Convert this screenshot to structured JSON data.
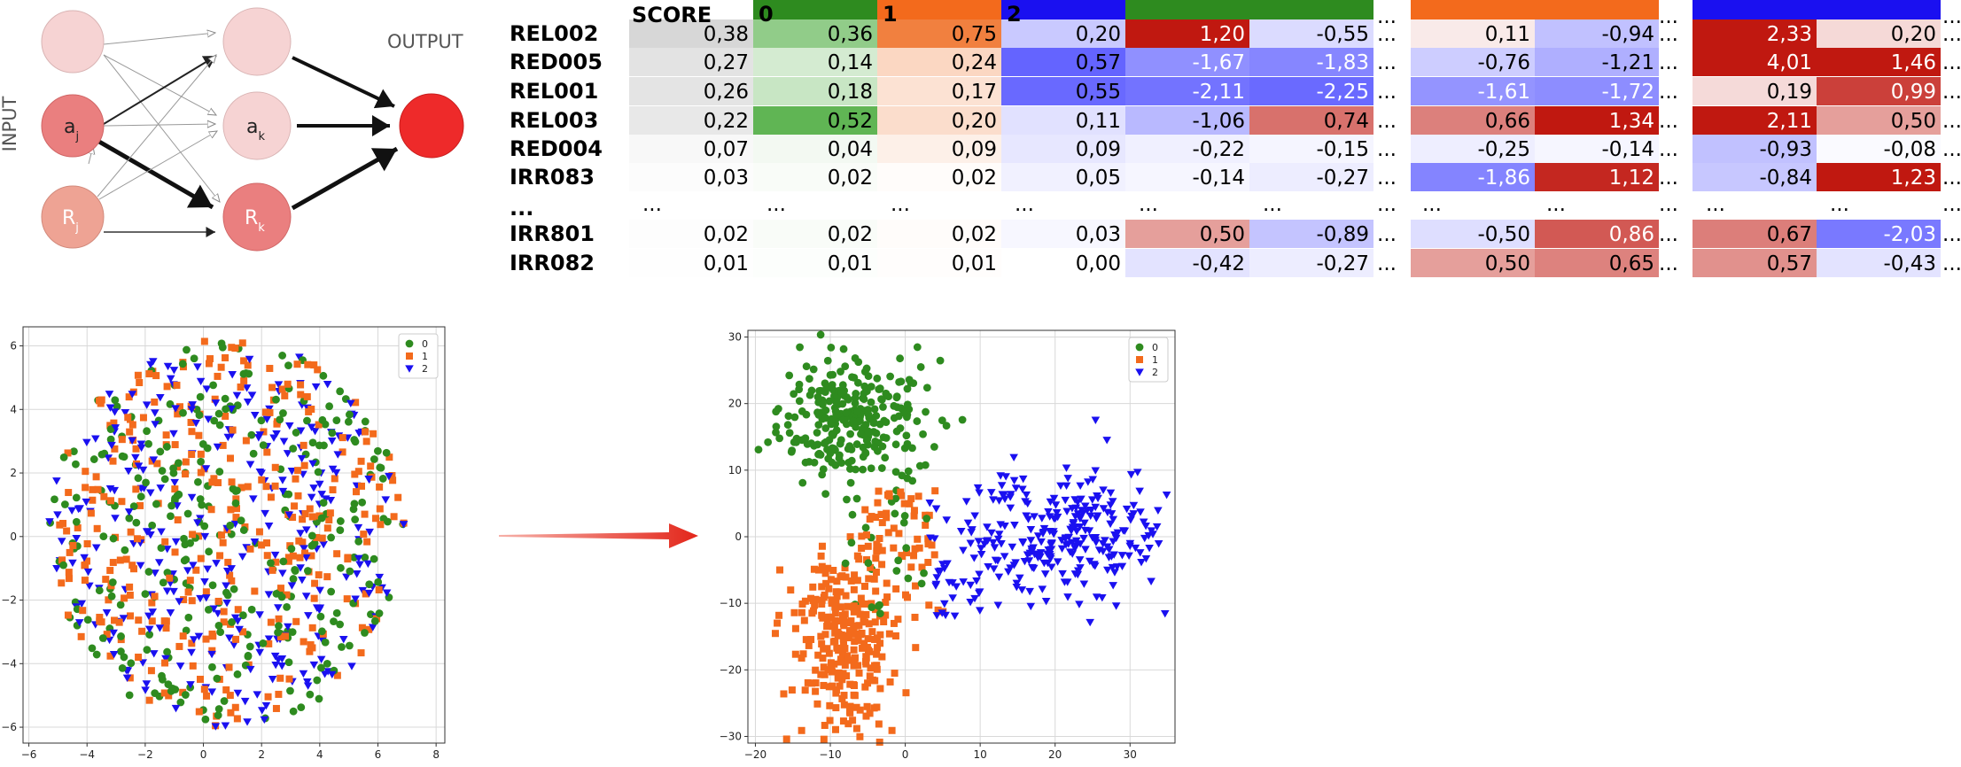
{
  "network": {
    "input_label": "INPUT",
    "output_label": "OUTPUT",
    "nodes": {
      "a_j": "a",
      "a_j_sub": "j",
      "a_k": "a",
      "a_k_sub": "k",
      "r_j": "R",
      "r_j_sub": "j",
      "r_k": "R",
      "r_k_sub": "k"
    },
    "colors": {
      "light": "#f6d3d3",
      "mid": "#ea7f7f",
      "salmon": "#eea394",
      "output": "#ee2a2a"
    }
  },
  "table": {
    "score_label": "SCORE",
    "group_headers": [
      "0",
      "1",
      "2"
    ],
    "header_colors": [
      "#2e8b1f",
      "#f36a1c",
      "#1a10f0"
    ],
    "ellipsis": "...",
    "rows": [
      {
        "label": "REL002",
        "score": "0,38",
        "p": [
          "0,36",
          "0,75",
          "0,20"
        ],
        "g1": [
          "1,20",
          "-0,55"
        ],
        "g2": [
          "0,11",
          "-0,94"
        ],
        "g3": [
          "2,33",
          "0,20"
        ]
      },
      {
        "label": "RED005",
        "score": "0,27",
        "p": [
          "0,14",
          "0,24",
          "0,57"
        ],
        "g1": [
          "-1,67",
          "-1,83"
        ],
        "g2": [
          "-0,76",
          "-1,21"
        ],
        "g3": [
          "4,01",
          "1,46"
        ]
      },
      {
        "label": "REL001",
        "score": "0,26",
        "p": [
          "0,18",
          "0,17",
          "0,55"
        ],
        "g1": [
          "-2,11",
          "-2,25"
        ],
        "g2": [
          "-1,61",
          "-1,72"
        ],
        "g3": [
          "0,19",
          "0,99"
        ]
      },
      {
        "label": "REL003",
        "score": "0,22",
        "p": [
          "0,52",
          "0,20",
          "0,11"
        ],
        "g1": [
          "-1,06",
          "0,74"
        ],
        "g2": [
          "0,66",
          "1,34"
        ],
        "g3": [
          "2,11",
          "0,50"
        ]
      },
      {
        "label": "RED004",
        "score": "0,07",
        "p": [
          "0,04",
          "0,09",
          "0,09"
        ],
        "g1": [
          "-0,22",
          "-0,15"
        ],
        "g2": [
          "-0,25",
          "-0,14"
        ],
        "g3": [
          "-0,93",
          "-0,08"
        ]
      },
      {
        "label": "IRR083",
        "score": "0,03",
        "p": [
          "0,02",
          "0,02",
          "0,05"
        ],
        "g1": [
          "-0,14",
          "-0,27"
        ],
        "g2": [
          "-1,86",
          "1,12"
        ],
        "g3": [
          "-0,84",
          "1,23"
        ]
      },
      {
        "label": "...",
        "ellipsis_row": true
      },
      {
        "label": "IRR801",
        "score": "0,02",
        "p": [
          "0,02",
          "0,02",
          "0,03"
        ],
        "g1": [
          "0,50",
          "-0,89"
        ],
        "g2": [
          "-0,50",
          "0,86"
        ],
        "g3": [
          "0,67",
          "-2,03"
        ]
      },
      {
        "label": "IRR082",
        "score": "0,01",
        "p": [
          "0,01",
          "0,01",
          "0,00"
        ],
        "g1": [
          "-0,42",
          "-0,27"
        ],
        "g2": [
          "0,50",
          "0,65"
        ],
        "g3": [
          "0,57",
          "-0,43"
        ]
      }
    ]
  },
  "chart_data": [
    {
      "type": "scatter",
      "title": "",
      "xlabel": "",
      "ylabel": "",
      "xlim": [
        -6.2,
        8.3
      ],
      "ylim": [
        -6.5,
        6.6
      ],
      "xticks": [
        -6,
        -4,
        -2,
        0,
        2,
        4,
        6,
        8
      ],
      "yticks": [
        -6,
        -4,
        -2,
        0,
        2,
        4,
        6
      ],
      "grid": true,
      "legend": "top-right",
      "legend_entries": [
        "0",
        "1",
        "2"
      ],
      "distribution": "uniform disc, all classes mixed",
      "center": [
        0.8,
        0.1
      ],
      "radius": 6.1,
      "series": [
        {
          "name": "0",
          "marker": "circle",
          "color": "#2e8b1f",
          "approx_points": 300
        },
        {
          "name": "1",
          "marker": "square",
          "color": "#f36a1c",
          "approx_points": 330
        },
        {
          "name": "2",
          "marker": "triangle-down",
          "color": "#1a10f0",
          "approx_points": 300
        }
      ]
    },
    {
      "type": "scatter",
      "title": "",
      "xlabel": "",
      "ylabel": "",
      "xlim": [
        -21,
        36
      ],
      "ylim": [
        -31,
        31
      ],
      "xticks": [
        -20,
        -10,
        0,
        10,
        20,
        30
      ],
      "yticks": [
        -30,
        -20,
        -10,
        0,
        10,
        20,
        30
      ],
      "grid": true,
      "legend": "top-right",
      "legend_entries": [
        "0",
        "1",
        "2"
      ],
      "distribution": "three separated clusters",
      "series": [
        {
          "name": "0",
          "marker": "circle",
          "color": "#2e8b1f",
          "cluster_center": [
            -7,
            18
          ],
          "cluster_spread": [
            5,
            6
          ],
          "approx_points": 300
        },
        {
          "name": "1",
          "marker": "square",
          "color": "#f36a1c",
          "cluster_center": [
            -8,
            -15
          ],
          "cluster_spread": [
            4,
            7
          ],
          "approx_points": 330
        },
        {
          "name": "2",
          "marker": "triangle-down",
          "color": "#1a10f0",
          "cluster_center": [
            21,
            0
          ],
          "cluster_spread": [
            7,
            5
          ],
          "approx_points": 300
        }
      ]
    }
  ]
}
